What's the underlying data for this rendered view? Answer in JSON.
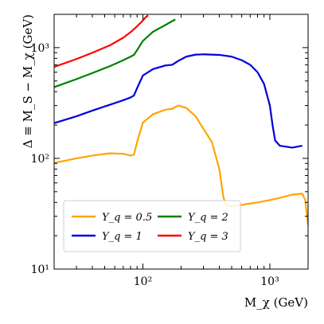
{
  "chart_data": {
    "type": "line",
    "xlabel": "M_χ (GeV)",
    "ylabel": "Δ ≡ M_S − M_χ (GeV)",
    "xscale": "log",
    "yscale": "log",
    "xlim": [
      20,
      2000
    ],
    "ylim": [
      10,
      2000
    ],
    "xticks": [
      {
        "value": 100,
        "label": "10²"
      },
      {
        "value": 1000,
        "label": "10³"
      }
    ],
    "yticks": [
      {
        "value": 10,
        "label": "10¹"
      },
      {
        "value": 100,
        "label": "10²"
      },
      {
        "value": 1000,
        "label": "10³"
      }
    ],
    "grid": false,
    "legend": {
      "position": "lower-left",
      "columns": 2
    },
    "series": [
      {
        "name": "Y_q = 0.5",
        "color": "#FFA500",
        "x": [
          20,
          30,
          40,
          55,
          70,
          80,
          85,
          90,
          100,
          120,
          150,
          170,
          190,
          220,
          260,
          300,
          350,
          400,
          430,
          450,
          500,
          600,
          800,
          1000,
          1200,
          1500,
          1800,
          1900,
          2000
        ],
        "y": [
          91,
          100,
          106,
          111,
          110,
          106,
          108,
          140,
          210,
          250,
          275,
          280,
          300,
          285,
          240,
          185,
          140,
          80,
          45,
          38,
          37,
          38,
          40,
          42,
          44,
          47,
          48,
          42,
          25
        ]
      },
      {
        "name": "Y_q = 1",
        "color": "#0000DD",
        "x": [
          20,
          30,
          40,
          55,
          70,
          80,
          85,
          90,
          100,
          120,
          150,
          170,
          190,
          220,
          260,
          300,
          400,
          500,
          600,
          700,
          800,
          900,
          1000,
          1050,
          1100,
          1200,
          1500,
          1800
        ],
        "y": [
          208,
          240,
          270,
          305,
          335,
          355,
          370,
          430,
          560,
          640,
          690,
          700,
          760,
          830,
          865,
          870,
          860,
          830,
          770,
          700,
          600,
          470,
          300,
          200,
          145,
          130,
          125,
          130
        ]
      },
      {
        "name": "Y_q = 2",
        "color": "#008000",
        "x": [
          20,
          30,
          40,
          55,
          70,
          80,
          85,
          90,
          100,
          120,
          150,
          180
        ],
        "y": [
          440,
          520,
          590,
          680,
          770,
          830,
          860,
          950,
          1150,
          1390,
          1600,
          1800
        ]
      },
      {
        "name": "Y_q = 3",
        "color": "#FF0000",
        "x": [
          20,
          30,
          40,
          55,
          70,
          80,
          90,
          100,
          105,
          110
        ],
        "y": [
          670,
          790,
          900,
          1050,
          1230,
          1380,
          1560,
          1760,
          1880,
          1960
        ]
      }
    ]
  }
}
